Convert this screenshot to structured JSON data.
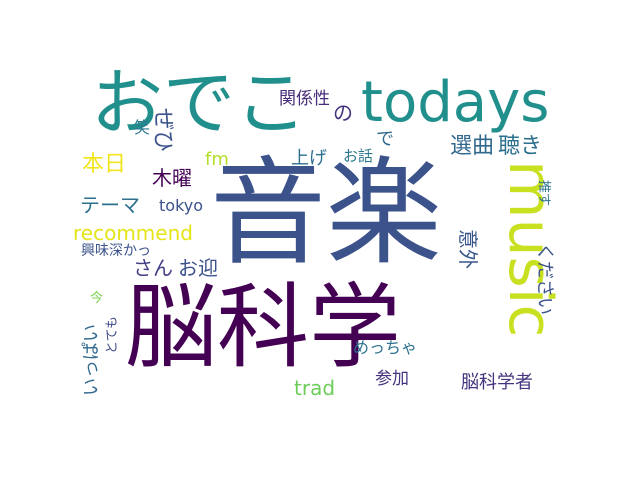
{
  "words": [
    {
      "id": "nokagaku",
      "text": "脳科学",
      "color": "#440154"
    },
    {
      "id": "ongaku",
      "text": "音楽",
      "color": "#3b528b"
    },
    {
      "id": "odeko",
      "text": "おでこ",
      "color": "#21908d"
    },
    {
      "id": "todays",
      "text": "todays",
      "color": "#21908d"
    },
    {
      "id": "music",
      "text": "music",
      "color": "#c8e020"
    },
    {
      "id": "recommend",
      "text": "recommend",
      "color": "#e5e419"
    },
    {
      "id": "mokuyou",
      "text": "木曜",
      "color": "#440154"
    },
    {
      "id": "honjitsu",
      "text": "本日",
      "color": "#f2e51d"
    },
    {
      "id": "theme",
      "text": "テーマ",
      "color": "#2c728e"
    },
    {
      "id": "tokyo",
      "text": "tokyo",
      "color": "#3b528b"
    },
    {
      "id": "senkyoku",
      "text": "選曲",
      "color": "#31688e"
    },
    {
      "id": "kiki",
      "text": "聴き",
      "color": "#2d708e"
    },
    {
      "id": "ageru",
      "text": "上げ",
      "color": "#2d708e"
    },
    {
      "id": "kankeisei",
      "text": "関係性",
      "color": "#472c7a"
    },
    {
      "id": "no",
      "text": "の",
      "color": "#46337e"
    },
    {
      "id": "de",
      "text": "で",
      "color": "#31688e"
    },
    {
      "id": "ohanashi",
      "text": "お話",
      "color": "#2a788e"
    },
    {
      "id": "oyukae",
      "text": "お迎",
      "color": "#3b528b"
    },
    {
      "id": "san",
      "text": "さん",
      "color": "#433e85"
    },
    {
      "id": "fm",
      "text": "fm",
      "color": "#b5de2b"
    },
    {
      "id": "kyoumi",
      "text": "興味深かっ",
      "color": "#3b528b"
    },
    {
      "id": "ima",
      "text": "今",
      "color": "#7ad151"
    },
    {
      "id": "ippai",
      "text": "いっぱい",
      "color": "#31688e"
    },
    {
      "id": "totemo",
      "text": "とても",
      "color": "#3e4989"
    },
    {
      "id": "trad",
      "text": "trad",
      "color": "#6ccd5a"
    },
    {
      "id": "meccha",
      "text": "めっちゃ",
      "color": "#2c728e"
    },
    {
      "id": "sanka",
      "text": "参加",
      "color": "#46337e"
    },
    {
      "id": "nokagakusha",
      "text": "脳科学者",
      "color": "#46337e"
    },
    {
      "id": "igai",
      "text": "意外",
      "color": "#39568c"
    },
    {
      "id": "kudasai",
      "text": "ください",
      "color": "#3b528b"
    },
    {
      "id": "oshimasu",
      "text": "推す",
      "color": "#2c728e"
    },
    {
      "id": "warai",
      "text": "笑",
      "color": "#2a788e"
    },
    {
      "id": "zehi",
      "text": "ぜひ",
      "color": "#3b528b"
    }
  ]
}
